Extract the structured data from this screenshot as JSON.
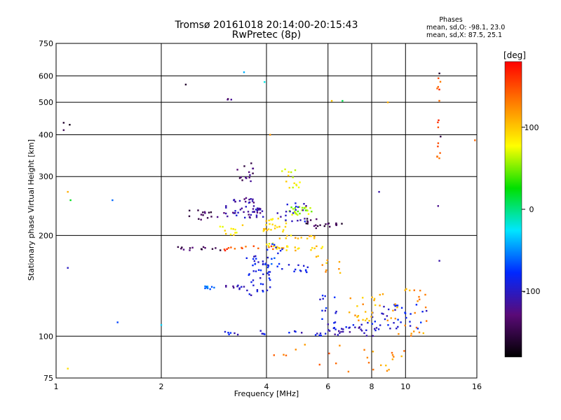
{
  "chart_data": {
    "type": "scatter",
    "title": "Tromsø 20161018 20:14:00-20:15:43",
    "subtitle": "RwPretec (8p)",
    "xlabel": "Frequency [MHz]",
    "ylabel": "Stationary phase Virtual Height [km]",
    "x_scale": "log",
    "y_scale": "log",
    "xlim": [
      1,
      16
    ],
    "ylim": [
      75,
      750
    ],
    "x_ticks": [
      "1",
      "2",
      "4",
      "6",
      "8",
      "10",
      "16"
    ],
    "y_ticks": [
      "75",
      "100",
      "200",
      "300",
      "400",
      "500",
      "600",
      "750"
    ],
    "grid": true,
    "stats": {
      "heading": "Phases",
      "line_o": "mean, sd,O: -98.1, 23.0",
      "line_x": "mean, sd,X:  87.5, 25.1"
    },
    "colorbar": {
      "label": "[deg]",
      "range": [
        -180,
        180
      ],
      "ticks": [
        "100",
        "0",
        "-100"
      ],
      "colors": [
        "#000000",
        "#5a0a78",
        "#0028ff",
        "#00e6ff",
        "#00e000",
        "#ffff00",
        "#ff8000",
        "#ff0000"
      ]
    },
    "clusters": [
      {
        "f": [
          3.0,
          4.0
        ],
        "h": [
          225,
          245
        ],
        "phase": -110,
        "n": 40
      },
      {
        "f": [
          2.4,
          3.0
        ],
        "h": [
          220,
          240
        ],
        "phase": -140,
        "n": 15
      },
      {
        "f": [
          3.2,
          3.7
        ],
        "h": [
          250,
          260
        ],
        "phase": -115,
        "n": 15
      },
      {
        "f": [
          3.3,
          3.8
        ],
        "h": [
          290,
          330
        ],
        "phase": -135,
        "n": 15
      },
      {
        "f": [
          3.9,
          4.6
        ],
        "h": [
          205,
          225
        ],
        "phase": 95,
        "n": 25
      },
      {
        "f": [
          4.6,
          5.4
        ],
        "h": [
          230,
          245
        ],
        "phase": 60,
        "n": 25
      },
      {
        "f": [
          4.4,
          5.0
        ],
        "h": [
          275,
          320
        ],
        "phase": 80,
        "n": 15
      },
      {
        "f": [
          4.3,
          5.2
        ],
        "h": [
          220,
          250
        ],
        "phase": -100,
        "n": 20
      },
      {
        "f": [
          5.2,
          5.8
        ],
        "h": [
          210,
          225
        ],
        "phase": -150,
        "n": 12
      },
      {
        "f": [
          5.8,
          6.6
        ],
        "h": [
          212,
          220
        ],
        "phase": -145,
        "n": 10
      },
      {
        "f": [
          2.8,
          3.5
        ],
        "h": [
          200,
          215
        ],
        "phase": 90,
        "n": 12
      },
      {
        "f": [
          2.2,
          3.0
        ],
        "h": [
          180,
          186
        ],
        "phase": -140,
        "n": 14
      },
      {
        "f": [
          3.0,
          4.2
        ],
        "h": [
          180,
          186
        ],
        "phase": 150,
        "n": 14
      },
      {
        "f": [
          4.0,
          4.3
        ],
        "h": [
          185,
          190
        ],
        "phase": 85,
        "n": 6
      },
      {
        "f": [
          4.2,
          5.8
        ],
        "h": [
          180,
          186
        ],
        "phase": 100,
        "n": 20
      },
      {
        "f": [
          4.2,
          5.5
        ],
        "h": [
          195,
          200
        ],
        "phase": 100,
        "n": 12
      },
      {
        "f": [
          3.5,
          4.1
        ],
        "h": [
          130,
          175
        ],
        "phase": -90,
        "n": 45
      },
      {
        "f": [
          3.9,
          4.5
        ],
        "h": [
          155,
          195
        ],
        "phase": -80,
        "n": 15
      },
      {
        "f": [
          4.3,
          5.3
        ],
        "h": [
          155,
          165
        ],
        "phase": -85,
        "n": 12
      },
      {
        "f": [
          2.6,
          3.0
        ],
        "h": [
          138,
          142
        ],
        "phase": -50,
        "n": 10
      },
      {
        "f": [
          3.0,
          3.5
        ],
        "h": [
          138,
          142
        ],
        "phase": -110,
        "n": 10
      },
      {
        "f": [
          5.5,
          6.6
        ],
        "h": [
          150,
          175
        ],
        "phase": 110,
        "n": 10
      },
      {
        "f": [
          6.0,
          8.5
        ],
        "h": [
          100,
          110
        ],
        "phase": -100,
        "n": 35
      },
      {
        "f": [
          8.0,
          9.5
        ],
        "h": [
          105,
          125
        ],
        "phase": -95,
        "n": 20
      },
      {
        "f": [
          6.5,
          9.0
        ],
        "h": [
          110,
          135
        ],
        "phase": 110,
        "n": 25
      },
      {
        "f": [
          9.0,
          11.5
        ],
        "h": [
          100,
          140
        ],
        "phase": 120,
        "n": 25
      },
      {
        "f": [
          9.5,
          11.5
        ],
        "h": [
          105,
          125
        ],
        "phase": -90,
        "n": 15
      },
      {
        "f": [
          7.5,
          10.0
        ],
        "h": [
          76,
          95
        ],
        "phase": 120,
        "n": 15
      },
      {
        "f": [
          4.0,
          7.0
        ],
        "h": [
          76,
          95
        ],
        "phase": 130,
        "n": 10
      },
      {
        "f": [
          3.0,
          4.0
        ],
        "h": [
          100,
          104
        ],
        "phase": -90,
        "n": 10
      },
      {
        "f": [
          4.5,
          6.0
        ],
        "h": [
          100,
          104
        ],
        "phase": -95,
        "n": 10
      },
      {
        "f": [
          5.5,
          6.5
        ],
        "h": [
          110,
          135
        ],
        "phase": -90,
        "n": 12
      },
      {
        "f": [
          12.3,
          12.6
        ],
        "h": [
          320,
          600
        ],
        "phase": 150,
        "n": 15
      },
      {
        "f": [
          3.0,
          3.2
        ],
        "h": [
          500,
          520
        ],
        "phase": -130,
        "n": 3
      },
      {
        "f": [
          1.05,
          1.1
        ],
        "h": [
          400,
          440
        ],
        "phase": -150,
        "n": 3
      }
    ],
    "extra_points": [
      {
        "x": 1.08,
        "y": 270,
        "phase": 110
      },
      {
        "x": 1.08,
        "y": 160,
        "phase": -100
      },
      {
        "x": 1.08,
        "y": 80,
        "phase": 90
      },
      {
        "x": 1.1,
        "y": 255,
        "phase": 20
      },
      {
        "x": 1.45,
        "y": 255,
        "phase": -60
      },
      {
        "x": 1.5,
        "y": 110,
        "phase": -70
      },
      {
        "x": 2.0,
        "y": 108,
        "phase": -30
      },
      {
        "x": 2.35,
        "y": 565,
        "phase": -160
      },
      {
        "x": 3.45,
        "y": 615,
        "phase": -40
      },
      {
        "x": 3.95,
        "y": 575,
        "phase": -20
      },
      {
        "x": 4.1,
        "y": 400,
        "phase": 120
      },
      {
        "x": 6.15,
        "y": 505,
        "phase": 100
      },
      {
        "x": 6.6,
        "y": 505,
        "phase": 10
      },
      {
        "x": 8.4,
        "y": 270,
        "phase": -110
      },
      {
        "x": 8.9,
        "y": 500,
        "phase": 110
      },
      {
        "x": 15.8,
        "y": 385,
        "phase": 140
      },
      {
        "x": 12.5,
        "y": 610,
        "phase": -160
      },
      {
        "x": 12.6,
        "y": 395,
        "phase": -150
      },
      {
        "x": 12.4,
        "y": 245,
        "phase": -120
      },
      {
        "x": 12.5,
        "y": 168,
        "phase": -110
      }
    ]
  }
}
